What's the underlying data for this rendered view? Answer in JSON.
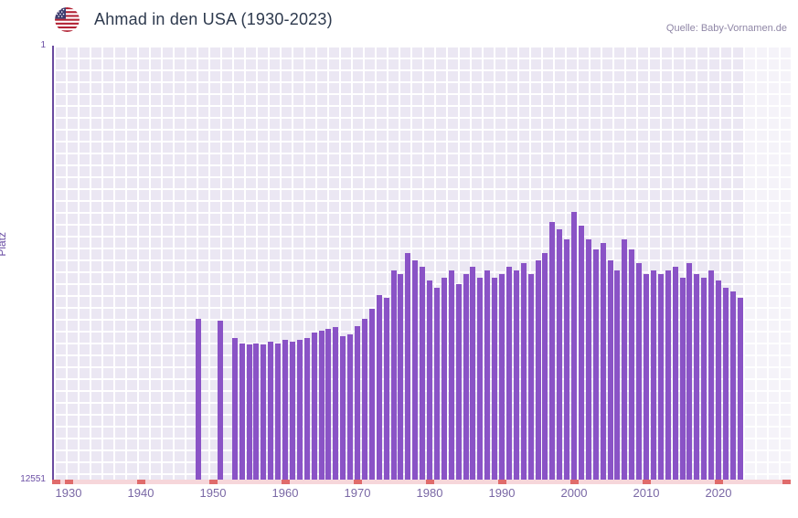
{
  "header": {
    "title": "Ahmad in den USA (1930-2023)",
    "source": "Quelle: Baby-Vornamen.de",
    "flag": "us-flag"
  },
  "chart_data": {
    "type": "bar",
    "title": "Ahmad in den USA (1930-2023)",
    "xlabel": "",
    "ylabel": "Platz",
    "y_axis": {
      "top_label": "1",
      "bottom_label": "12551",
      "min": 1,
      "max": 12551,
      "inverted": true
    },
    "x_ticks": [
      1930,
      1940,
      1950,
      1960,
      1970,
      1980,
      1990,
      2000,
      2010,
      2020
    ],
    "bar_color": "#8a53c6",
    "plot_background": "#ebe7f3",
    "axis_color": "#6a4aa0",
    "tick_mark_color": "#e06b6b",
    "years": [
      1930,
      1931,
      1932,
      1933,
      1934,
      1935,
      1936,
      1937,
      1938,
      1939,
      1940,
      1941,
      1942,
      1943,
      1944,
      1945,
      1946,
      1947,
      1948,
      1949,
      1950,
      1951,
      1952,
      1953,
      1954,
      1955,
      1956,
      1957,
      1958,
      1959,
      1960,
      1961,
      1962,
      1963,
      1964,
      1965,
      1966,
      1967,
      1968,
      1969,
      1970,
      1971,
      1972,
      1973,
      1974,
      1975,
      1976,
      1977,
      1978,
      1979,
      1980,
      1981,
      1982,
      1983,
      1984,
      1985,
      1986,
      1987,
      1988,
      1989,
      1990,
      1991,
      1992,
      1993,
      1994,
      1995,
      1996,
      1997,
      1998,
      1999,
      2000,
      2001,
      2002,
      2003,
      2004,
      2005,
      2006,
      2007,
      2008,
      2009,
      2010,
      2011,
      2012,
      2013,
      2014,
      2015,
      2016,
      2017,
      2018,
      2019,
      2020,
      2021,
      2022,
      2023
    ],
    "ranks": [
      null,
      null,
      null,
      null,
      null,
      null,
      null,
      null,
      null,
      null,
      null,
      null,
      null,
      null,
      null,
      null,
      null,
      null,
      7900,
      null,
      null,
      7950,
      null,
      8450,
      8600,
      8650,
      8600,
      8650,
      8550,
      8600,
      8500,
      8550,
      8500,
      8450,
      8300,
      8250,
      8200,
      8150,
      8400,
      8350,
      8100,
      7900,
      7600,
      7200,
      7300,
      6500,
      6600,
      6000,
      6200,
      6400,
      6800,
      7000,
      6700,
      6500,
      6900,
      6600,
      6400,
      6700,
      6500,
      6700,
      6600,
      6400,
      6500,
      6300,
      6600,
      6200,
      6000,
      5100,
      5300,
      5600,
      4800,
      5200,
      5600,
      5900,
      5700,
      6200,
      6500,
      5600,
      5900,
      6300,
      6600,
      6500,
      6600,
      6500,
      6400,
      6700,
      6300,
      6600,
      6700,
      6500,
      6800,
      7000,
      7100,
      7300
    ]
  }
}
